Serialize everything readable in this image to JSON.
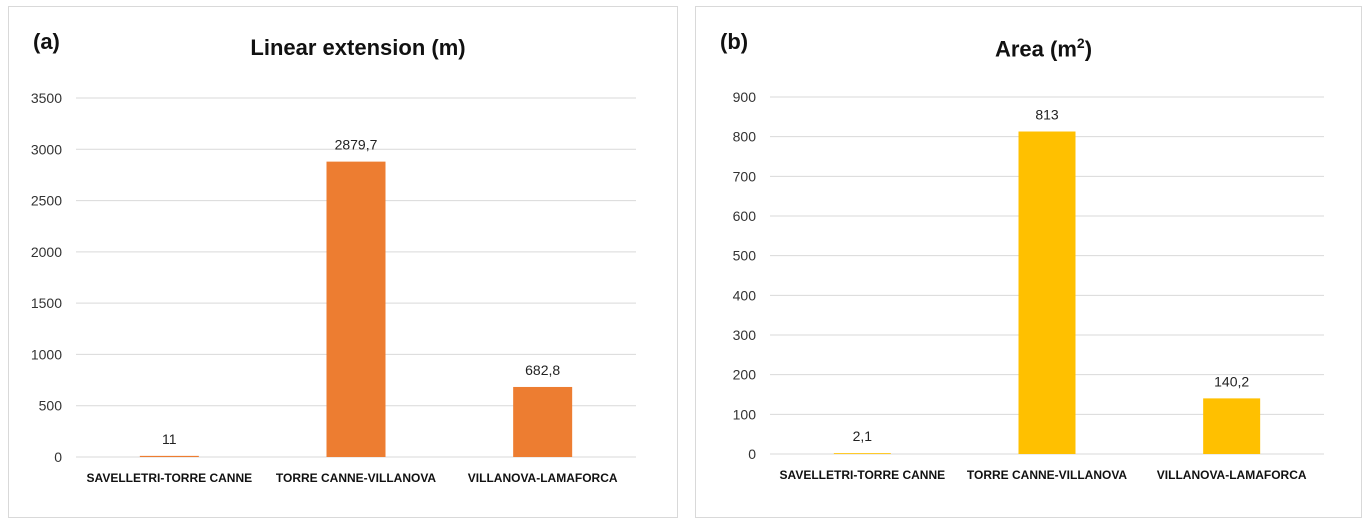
{
  "chart_data": [
    {
      "type": "bar",
      "panel_label": "(a)",
      "title": "Linear extension (m)",
      "categories": [
        "SAVELLETRI-TORRE CANNE",
        "TORRE CANNE-VILLANOVA",
        "VILLANOVA-LAMAFORCA"
      ],
      "values": [
        11,
        2879.7,
        682.8
      ],
      "data_labels": [
        "11",
        "2879,7",
        "682,8"
      ],
      "yticks": [
        0,
        500,
        1000,
        1500,
        2000,
        2500,
        3000,
        3500
      ],
      "ylim": [
        0,
        3500
      ],
      "color": "#ED7D31",
      "grid": true
    },
    {
      "type": "bar",
      "panel_label": "(b)",
      "title_prefix": "Area (m",
      "title_sup": "2",
      "title_suffix": ")",
      "categories": [
        "SAVELLETRI-TORRE CANNE",
        "TORRE CANNE-VILLANOVA",
        "VILLANOVA-LAMAFORCA"
      ],
      "values": [
        2.1,
        813,
        140.2
      ],
      "data_labels": [
        "2,1",
        "813",
        "140,2"
      ],
      "yticks": [
        0,
        100,
        200,
        300,
        400,
        500,
        600,
        700,
        800,
        900
      ],
      "ylim": [
        0,
        900
      ],
      "color": "#FFC000",
      "grid": true
    }
  ]
}
